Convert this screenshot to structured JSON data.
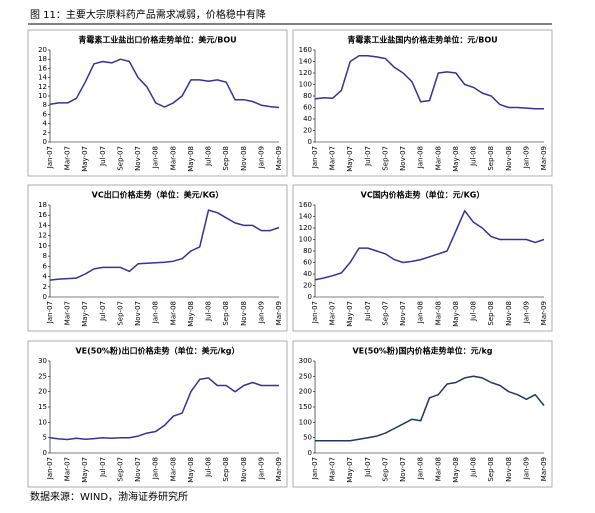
{
  "title": "图 11：主要大宗原料药产品需求减弱，价格稳中有降",
  "source": "数据来源：WIND，渤海证券研究所",
  "chart_data": [
    {
      "type": "line",
      "title": "青霉素工业盐出口价格走势单位：美元/BOU",
      "color": "#333399",
      "categories": [
        "Jan-07",
        null,
        "Mar-07",
        null,
        "May-07",
        null,
        "Jul-07",
        null,
        "Sep-07",
        null,
        "Nov-07",
        null,
        "Jan-08",
        null,
        "Mar-08",
        null,
        "May-08",
        null,
        "Jul-08",
        null,
        "Sep-08",
        null,
        "Nov-08",
        null,
        "Jan-09",
        null,
        "Mar-09"
      ],
      "values": [
        8.2,
        8.5,
        8.5,
        9.5,
        13,
        17,
        17.5,
        17.2,
        18,
        17.5,
        14,
        12,
        8.5,
        7.6,
        8.5,
        10,
        13.5,
        13.5,
        13.2,
        13.5,
        13,
        9.2,
        9.2,
        8.8,
        8,
        7.7,
        7.5
      ],
      "ylim": [
        0,
        20
      ],
      "yticks": [
        0,
        2,
        4,
        6,
        8,
        10,
        12,
        14,
        16,
        18,
        20
      ]
    },
    {
      "type": "line",
      "title": "青霉素工业盐国内价格走势单位：元/BOU",
      "color": "#333399",
      "categories": [
        "Jan-07",
        null,
        "Mar-07",
        null,
        "May-07",
        null,
        "Jul-07",
        null,
        "Sep-07",
        null,
        "Nov-07",
        null,
        "Jan-08",
        null,
        "Mar-08",
        null,
        "May-08",
        null,
        "Jul-08",
        null,
        "Sep-08",
        null,
        "Nov-08",
        null,
        "Jan-09",
        null,
        "Mar-09"
      ],
      "values": [
        75,
        77,
        76,
        90,
        140,
        150,
        150,
        148,
        145,
        130,
        120,
        105,
        70,
        72,
        120,
        122,
        120,
        100,
        95,
        85,
        80,
        65,
        60,
        60,
        59,
        58,
        58
      ],
      "ylim": [
        0,
        160
      ],
      "yticks": [
        0,
        20,
        40,
        60,
        80,
        100,
        120,
        140,
        160
      ]
    },
    {
      "type": "line",
      "title": "VC出口价格走势（单位：美元/KG）",
      "color": "#333399",
      "categories": [
        "Jan-07",
        null,
        "Mar-07",
        null,
        "May-07",
        null,
        "Jul-07",
        null,
        "Sep-07",
        null,
        "Nov-07",
        null,
        "Jan-08",
        null,
        "Mar-08",
        null,
        "May-08",
        null,
        "Jul-08",
        null,
        "Sep-08",
        null,
        "Nov-08",
        null,
        "Jan-09",
        null,
        "Mar-09"
      ],
      "values": [
        3.3,
        3.5,
        3.6,
        3.7,
        4.5,
        5.5,
        5.8,
        5.8,
        5.8,
        5.0,
        6.5,
        6.6,
        6.7,
        6.8,
        7,
        7.5,
        9,
        9.8,
        17,
        16.5,
        15.5,
        14.5,
        14,
        14,
        13,
        13,
        13.6
      ],
      "ylim": [
        0,
        18
      ],
      "yticks": [
        0,
        2,
        4,
        6,
        8,
        10,
        12,
        14,
        16,
        18
      ]
    },
    {
      "type": "line",
      "title": "VC国内价格走势（单位：元/KG）",
      "color": "#333399",
      "categories": [
        "Jan-07",
        null,
        "Mar-07",
        null,
        "May-07",
        null,
        "Jul-07",
        null,
        "Sep-07",
        null,
        "Nov-07",
        null,
        "Jan-08",
        null,
        "Mar-08",
        null,
        "May-08",
        null,
        "Jul-08",
        null,
        "Sep-08",
        null,
        "Nov-08",
        null,
        "Jan-09",
        null,
        "Mar-09"
      ],
      "values": [
        30,
        33,
        37,
        42,
        60,
        85,
        85,
        80,
        75,
        65,
        60,
        62,
        65,
        70,
        75,
        80,
        115,
        150,
        130,
        120,
        105,
        100,
        100,
        100,
        100,
        95,
        100
      ],
      "ylim": [
        0,
        160
      ],
      "yticks": [
        0,
        20,
        40,
        60,
        80,
        100,
        120,
        140,
        160
      ]
    },
    {
      "type": "line",
      "title": "VE(50%粉)出口价格走势（单位：美元/kg）",
      "color": "#333399",
      "categories": [
        "Jan-07",
        null,
        "Mar-07",
        null,
        "May-07",
        null,
        "Jul-07",
        null,
        "Sep-07",
        null,
        "Nov-07",
        null,
        "Jan-08",
        null,
        "Mar-08",
        null,
        "May-08",
        null,
        "Jul-08",
        null,
        "Sep-08",
        null,
        "Nov-08",
        null,
        "Jan-09",
        null,
        "Mar-09"
      ],
      "values": [
        5,
        4.6,
        4.4,
        4.8,
        4.5,
        4.7,
        5,
        4.8,
        5,
        5,
        5.5,
        6.5,
        7,
        9,
        12,
        13,
        20,
        24,
        24.5,
        22,
        22,
        20,
        22,
        23,
        22,
        22,
        22
      ],
      "ylim": [
        0,
        30
      ],
      "yticks": [
        0,
        5,
        10,
        15,
        20,
        25,
        30
      ]
    },
    {
      "type": "line",
      "title": "VE(50%粉)国内价格走势单位：元/kg",
      "color": "#1f3864",
      "categories": [
        "Jan-07",
        null,
        "Mar-07",
        null,
        "May-07",
        null,
        "Jul-07",
        null,
        "Sep-07",
        null,
        "Nov-07",
        null,
        "Jan-08",
        null,
        "Mar-08",
        null,
        "May-08",
        null,
        "Jul-08",
        null,
        "Sep-08",
        null,
        "Nov-08",
        null,
        "Jan-09",
        null,
        "Mar-09"
      ],
      "values": [
        40,
        40,
        40,
        40,
        40,
        45,
        50,
        55,
        65,
        80,
        95,
        110,
        105,
        180,
        190,
        225,
        230,
        245,
        250,
        245,
        230,
        220,
        200,
        190,
        175,
        190,
        155
      ],
      "ylim": [
        0,
        300
      ],
      "yticks": [
        0,
        50,
        100,
        150,
        200,
        250,
        300
      ]
    }
  ]
}
